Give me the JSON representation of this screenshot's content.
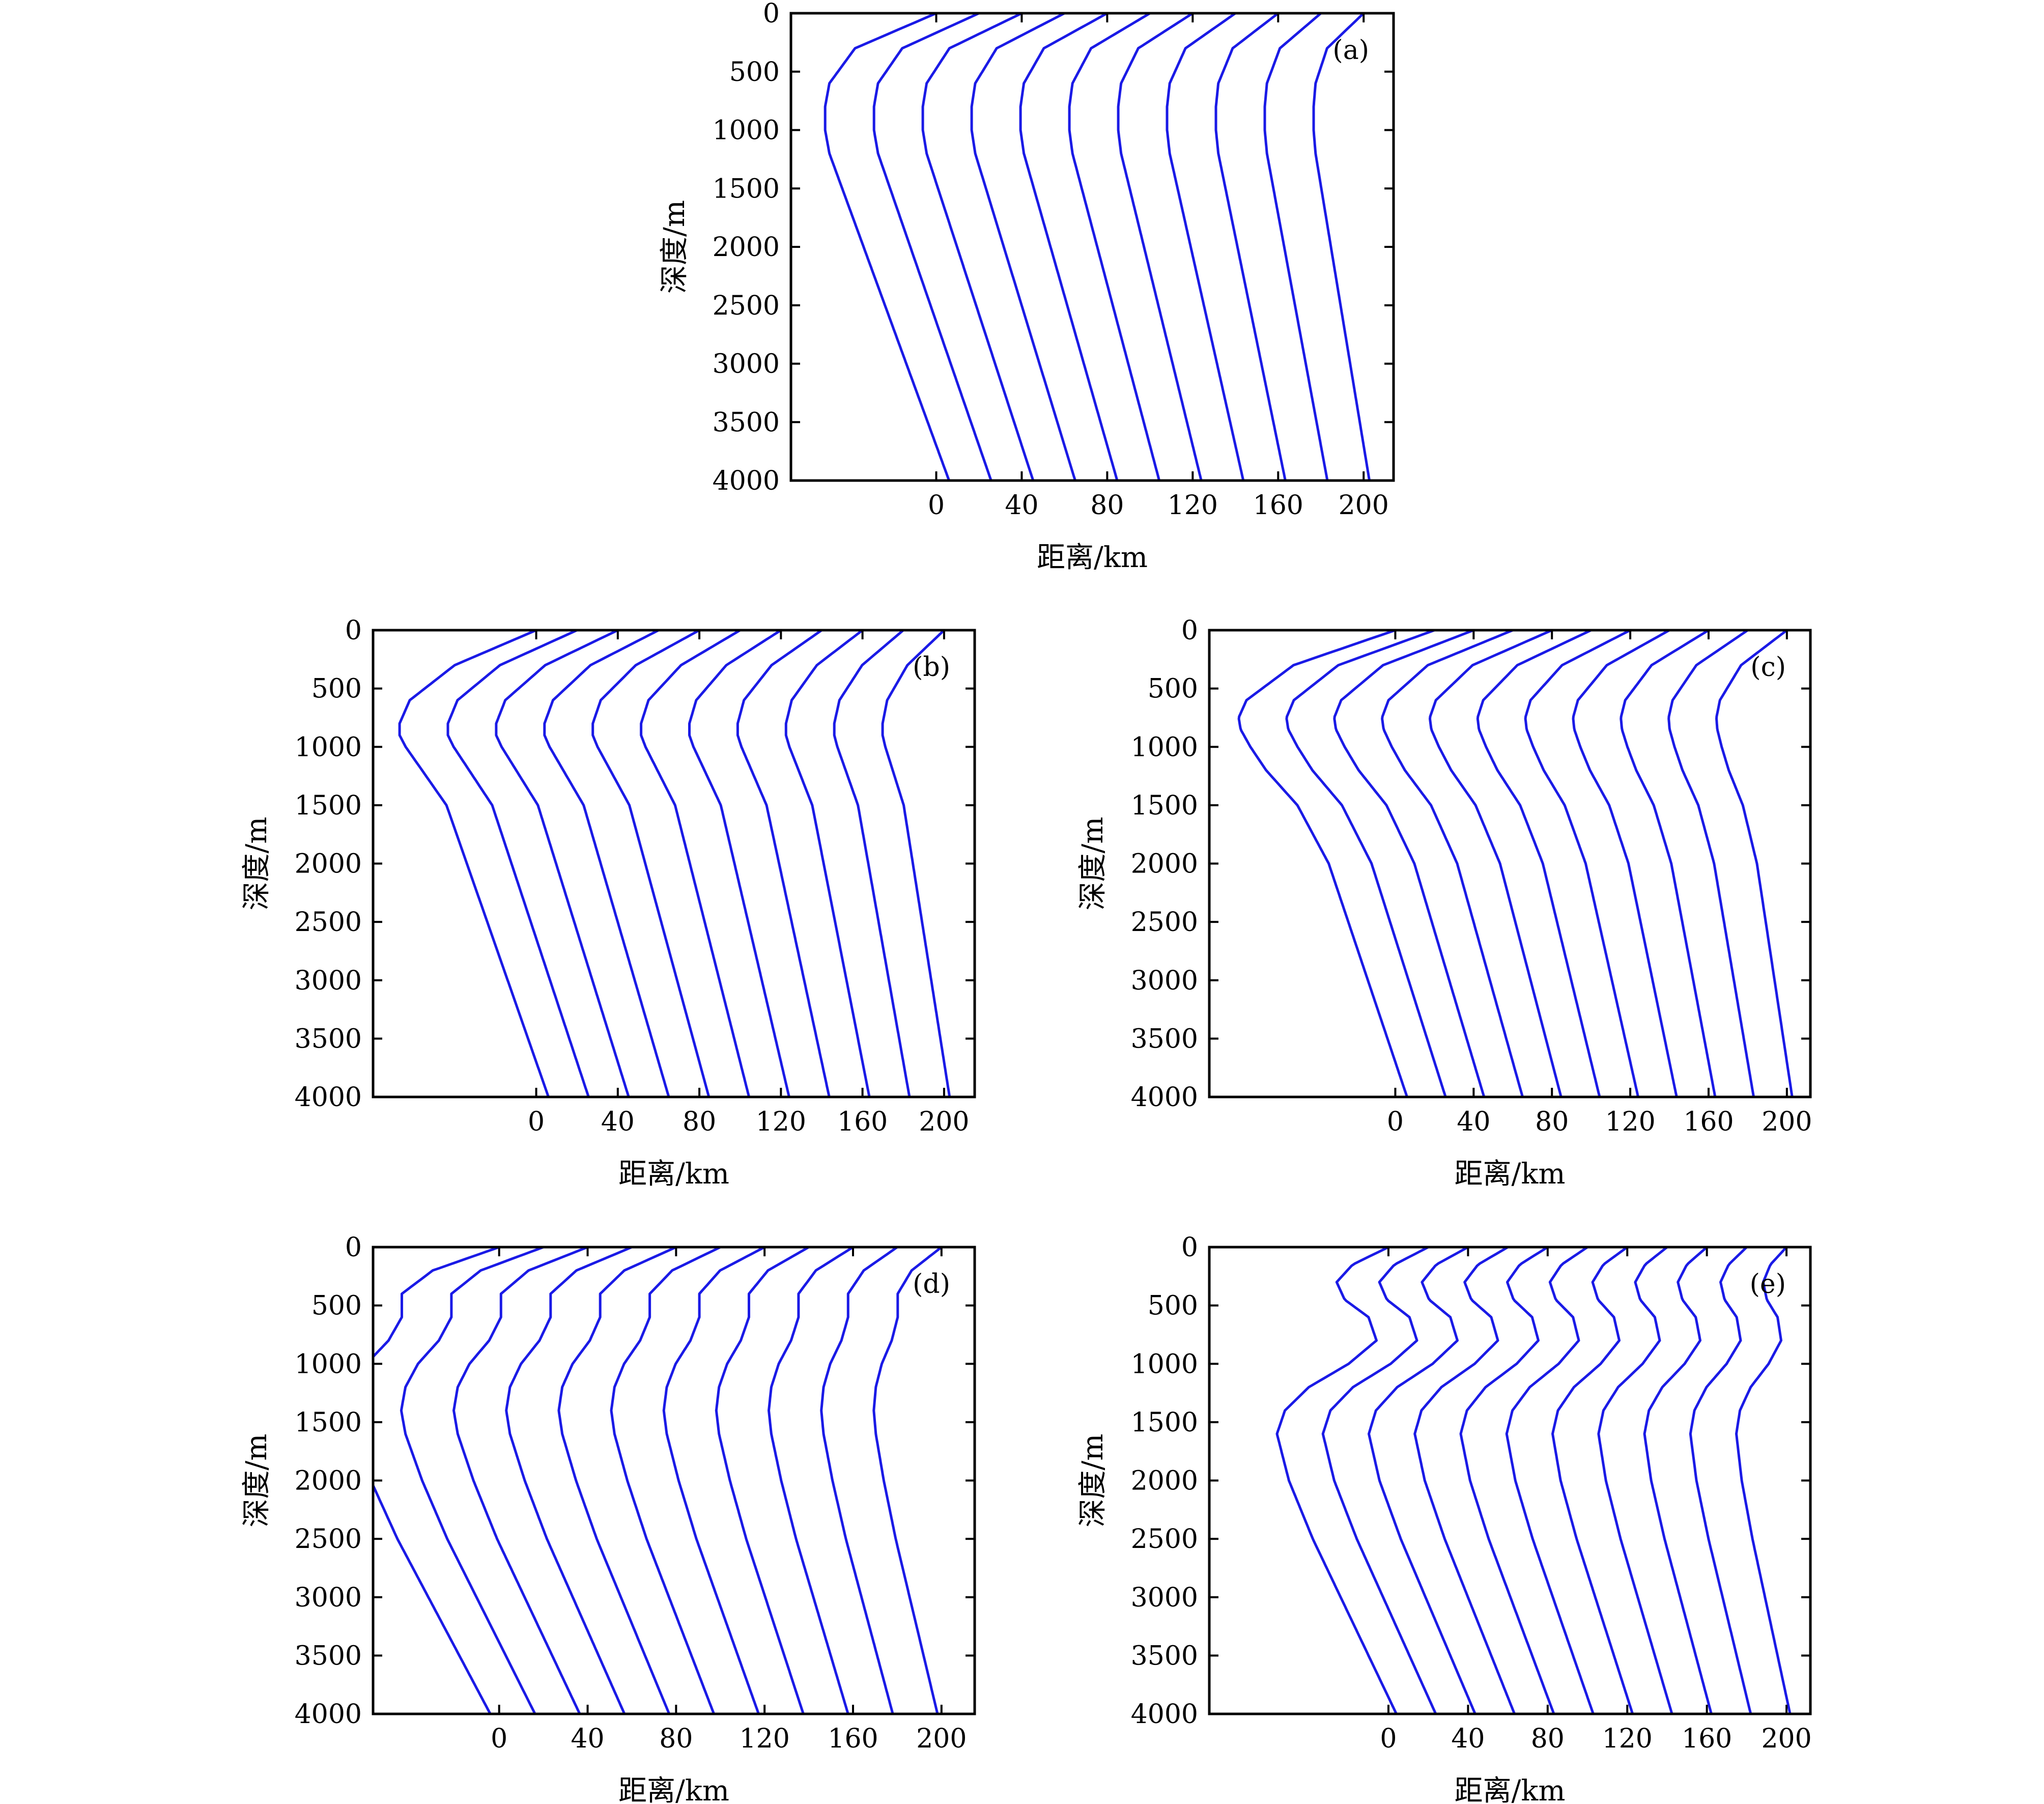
{
  "figure": {
    "line_color": "#1a1ae6",
    "axis_color": "#000000"
  },
  "chart_data": [
    {
      "type": "line",
      "panel_label": "(a)",
      "xlabel": "距离/km",
      "ylabel": "深度/m",
      "x_ticks": [
        0,
        40,
        80,
        120,
        160,
        200
      ],
      "y_ticks": [
        0,
        500,
        1000,
        1500,
        2000,
        2500,
        3000,
        3500,
        4000
      ],
      "ylim": [
        0,
        4000
      ],
      "y_inverted": true,
      "profile_offsets_km": [
        0,
        20,
        40,
        60,
        80,
        100,
        120,
        140,
        160,
        180,
        200
      ],
      "note_profiles": "each curve is a vertical depth profile plotted at its range offset",
      "profile_depth": [
        0,
        300,
        600,
        800,
        1000,
        1200,
        1500,
        2000,
        2500,
        3000,
        3500,
        4000
      ],
      "profile_deviation_km": [
        0,
        -38,
        -50,
        -52,
        -52,
        -50,
        -44,
        -34,
        -24,
        -14,
        -4,
        6
      ]
    },
    {
      "type": "line",
      "panel_label": "(b)",
      "xlabel": "距离/km",
      "ylabel": "深度/m",
      "x_ticks": [
        0,
        40,
        80,
        120,
        160,
        200
      ],
      "y_ticks": [
        0,
        500,
        1000,
        1500,
        2000,
        2500,
        3000,
        3500,
        4000
      ],
      "ylim": [
        0,
        4000
      ],
      "y_inverted": true,
      "profile_offsets_km": [
        0,
        20,
        40,
        60,
        80,
        100,
        120,
        140,
        160,
        180,
        200
      ],
      "profile_depth": [
        0,
        300,
        600,
        800,
        900,
        1000,
        1200,
        1500,
        2000,
        2500,
        3000,
        3500,
        4000
      ],
      "profile_deviation_km": [
        0,
        -40,
        -62,
        -67,
        -67,
        -64,
        -56,
        -44,
        -34,
        -24,
        -14,
        -4,
        6
      ]
    },
    {
      "type": "line",
      "panel_label": "(c)",
      "xlabel": "距离/km",
      "ylabel": "深度/m",
      "x_ticks": [
        0,
        40,
        80,
        120,
        160,
        200
      ],
      "y_ticks": [
        0,
        500,
        1000,
        1500,
        2000,
        2500,
        3000,
        3500,
        4000
      ],
      "ylim": [
        0,
        4000
      ],
      "y_inverted": true,
      "profile_offsets_km": [
        0,
        20,
        40,
        60,
        80,
        100,
        120,
        140,
        160,
        180,
        200
      ],
      "profile_depth": [
        0,
        300,
        600,
        750,
        850,
        1000,
        1200,
        1500,
        2000,
        2500,
        3000,
        3500,
        4000
      ],
      "profile_deviation_km": [
        0,
        -52,
        -76,
        -80,
        -79,
        -74,
        -66,
        -50,
        -34,
        -24,
        -14,
        -4,
        6
      ]
    },
    {
      "type": "line",
      "panel_label": "(d)",
      "xlabel": "距离/km",
      "ylabel": "深度/m",
      "x_ticks": [
        0,
        40,
        80,
        120,
        160,
        200
      ],
      "y_ticks": [
        0,
        500,
        1000,
        1500,
        2000,
        2500,
        3000,
        3500,
        4000
      ],
      "ylim": [
        0,
        4000
      ],
      "y_inverted": true,
      "profile_offsets_km": [
        0,
        20,
        40,
        60,
        80,
        100,
        120,
        140,
        160,
        180,
        200
      ],
      "profile_depth": [
        0,
        200,
        400,
        600,
        800,
        1000,
        1200,
        1400,
        1600,
        2000,
        2500,
        3000,
        3500,
        4000
      ],
      "profile_deviation_km": [
        0,
        -30,
        -44,
        -44,
        -50,
        -60,
        -66,
        -68,
        -66,
        -58,
        -46,
        -32,
        -18,
        -4
      ]
    },
    {
      "type": "line",
      "panel_label": "(e)",
      "xlabel": "距离/km",
      "ylabel": "深度/m",
      "x_ticks": [
        0,
        40,
        80,
        120,
        160,
        200
      ],
      "y_ticks": [
        0,
        500,
        1000,
        1500,
        2000,
        2500,
        3000,
        3500,
        4000
      ],
      "ylim": [
        0,
        4000
      ],
      "y_inverted": true,
      "profile_offsets_km": [
        0,
        20,
        40,
        60,
        80,
        100,
        120,
        140,
        160,
        180,
        200
      ],
      "profile_depth": [
        0,
        150,
        300,
        450,
        600,
        800,
        1000,
        1200,
        1400,
        1600,
        2000,
        2500,
        3000,
        3500,
        4000
      ],
      "profile_deviation_km": [
        0,
        -18,
        -26,
        -22,
        -10,
        -6,
        -20,
        -40,
        -52,
        -56,
        -50,
        -38,
        -24,
        -10,
        4
      ]
    }
  ]
}
